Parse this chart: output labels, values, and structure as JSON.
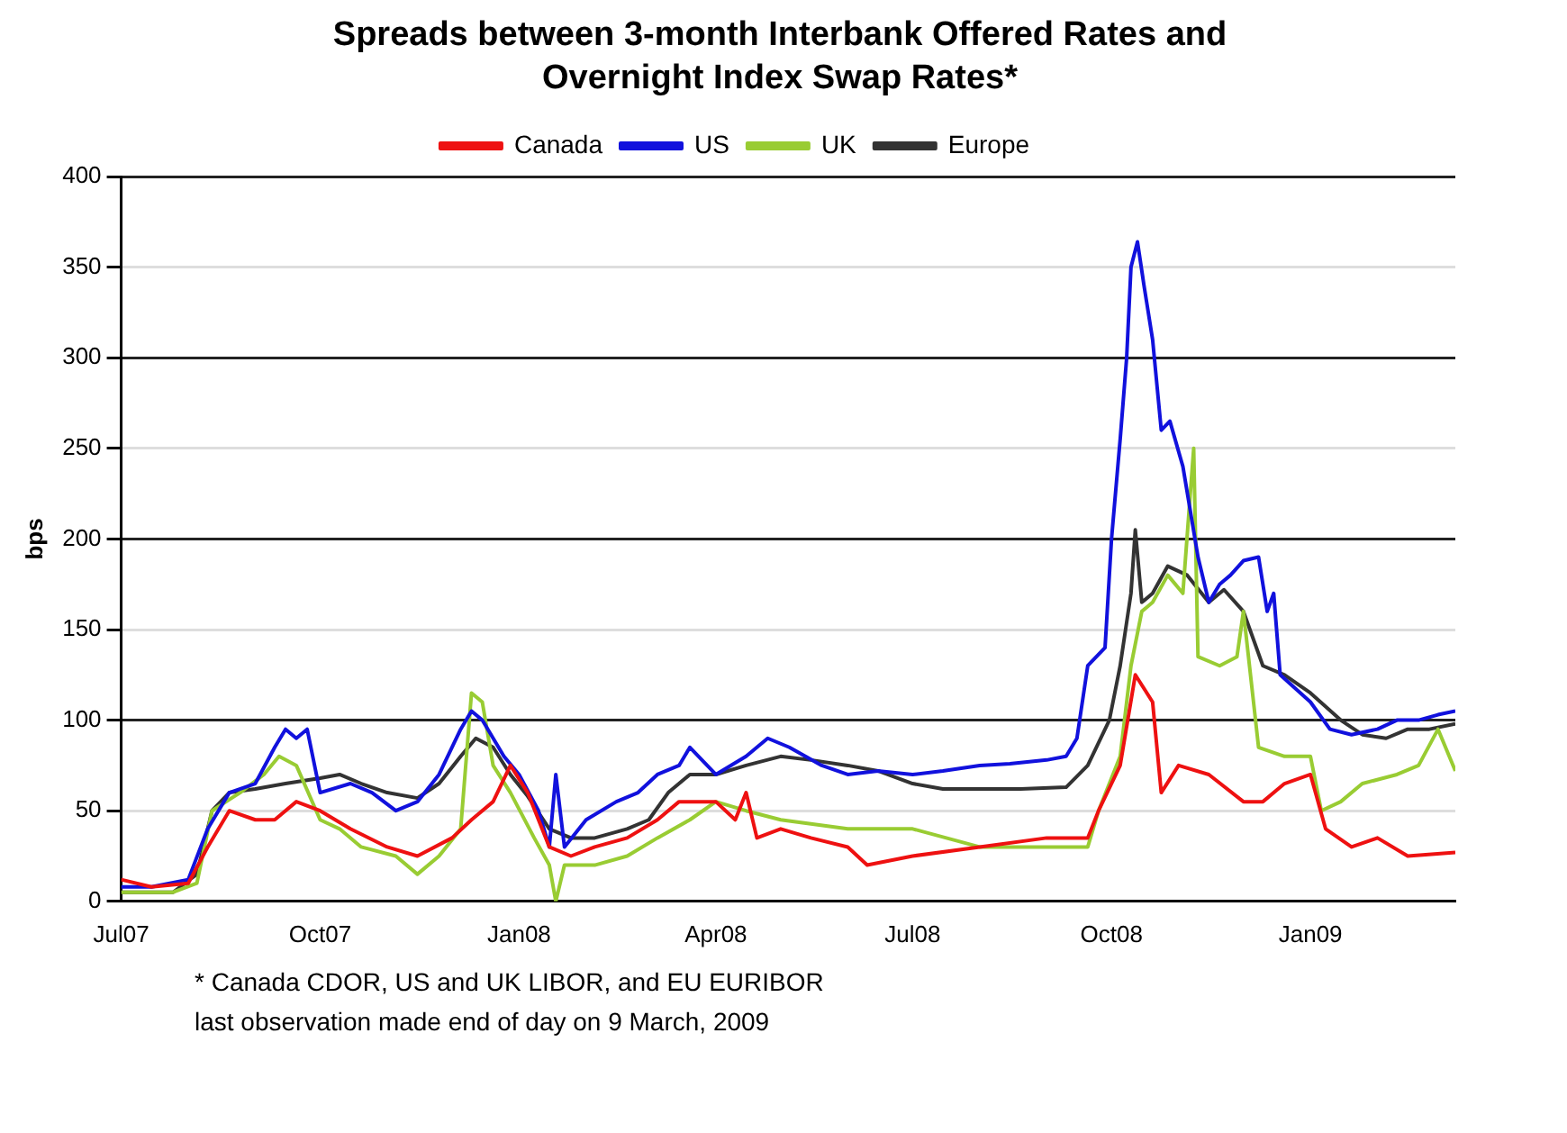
{
  "chart_data": {
    "type": "line",
    "title": "Spreads between 3-month Interbank Offered Rates and Overnight Index Swap Rates*",
    "ylabel": "bps",
    "xlim": [
      "2007-07-01",
      "2009-03-09"
    ],
    "xticks": [
      {
        "value": "2007-07-01",
        "label": "Jul07"
      },
      {
        "value": "2007-10-01",
        "label": "Oct07"
      },
      {
        "value": "2008-01-01",
        "label": "Jan08"
      },
      {
        "value": "2008-04-01",
        "label": "Apr08"
      },
      {
        "value": "2008-07-01",
        "label": "Jul08"
      },
      {
        "value": "2008-10-01",
        "label": "Oct08"
      },
      {
        "value": "2009-01-01",
        "label": "Jan09"
      }
    ],
    "ylim": [
      0,
      400
    ],
    "yticks": [
      0,
      50,
      100,
      150,
      200,
      250,
      300,
      350,
      400
    ],
    "grid": "y",
    "legend": "top",
    "marker": "none",
    "line_style": "solid",
    "series": [
      {
        "name": "Canada",
        "color": "#ee1111",
        "x": [
          "2007-07-01",
          "2007-07-15",
          "2007-08-01",
          "2007-08-10",
          "2007-08-20",
          "2007-09-01",
          "2007-09-10",
          "2007-09-20",
          "2007-10-01",
          "2007-10-15",
          "2007-11-01",
          "2007-11-15",
          "2007-12-01",
          "2007-12-10",
          "2007-12-20",
          "2007-12-28",
          "2008-01-05",
          "2008-01-15",
          "2008-01-25",
          "2008-02-05",
          "2008-02-20",
          "2008-03-05",
          "2008-03-15",
          "2008-04-01",
          "2008-04-10",
          "2008-04-15",
          "2008-04-20",
          "2008-05-01",
          "2008-05-15",
          "2008-06-01",
          "2008-06-10",
          "2008-07-01",
          "2008-08-01",
          "2008-09-01",
          "2008-09-20",
          "2008-09-25",
          "2008-10-05",
          "2008-10-12",
          "2008-10-20",
          "2008-10-24",
          "2008-11-01",
          "2008-11-15",
          "2008-12-01",
          "2008-12-10",
          "2008-12-20",
          "2009-01-01",
          "2009-01-08",
          "2009-01-20",
          "2009-02-01",
          "2009-02-15",
          "2009-03-09"
        ],
        "values": [
          12,
          8,
          10,
          30,
          50,
          45,
          45,
          55,
          50,
          40,
          30,
          25,
          35,
          45,
          55,
          75,
          60,
          30,
          25,
          30,
          35,
          45,
          55,
          55,
          45,
          60,
          35,
          40,
          35,
          30,
          20,
          25,
          30,
          35,
          35,
          50,
          75,
          125,
          110,
          60,
          75,
          70,
          55,
          55,
          65,
          70,
          40,
          30,
          35,
          25,
          27
        ]
      },
      {
        "name": "US",
        "color": "#1111dd",
        "x": [
          "2007-07-01",
          "2007-07-15",
          "2007-08-01",
          "2007-08-10",
          "2007-08-20",
          "2007-09-01",
          "2007-09-10",
          "2007-09-15",
          "2007-09-20",
          "2007-09-25",
          "2007-10-01",
          "2007-10-15",
          "2007-10-25",
          "2007-11-05",
          "2007-11-15",
          "2007-11-25",
          "2007-12-05",
          "2007-12-10",
          "2007-12-15",
          "2007-12-25",
          "2008-01-01",
          "2008-01-10",
          "2008-01-15",
          "2008-01-18",
          "2008-01-22",
          "2008-02-01",
          "2008-02-15",
          "2008-02-25",
          "2008-03-05",
          "2008-03-15",
          "2008-03-20",
          "2008-04-01",
          "2008-04-15",
          "2008-04-25",
          "2008-05-05",
          "2008-05-20",
          "2008-06-01",
          "2008-06-15",
          "2008-07-01",
          "2008-07-15",
          "2008-08-01",
          "2008-08-15",
          "2008-09-01",
          "2008-09-10",
          "2008-09-15",
          "2008-09-20",
          "2008-09-28",
          "2008-10-01",
          "2008-10-05",
          "2008-10-08",
          "2008-10-10",
          "2008-10-13",
          "2008-10-16",
          "2008-10-20",
          "2008-10-24",
          "2008-10-28",
          "2008-11-03",
          "2008-11-10",
          "2008-11-15",
          "2008-11-20",
          "2008-11-25",
          "2008-12-01",
          "2008-12-08",
          "2008-12-12",
          "2008-12-15",
          "2008-12-18",
          "2009-01-01",
          "2009-01-10",
          "2009-01-20",
          "2009-02-01",
          "2009-02-10",
          "2009-02-20",
          "2009-03-01",
          "2009-03-09"
        ],
        "values": [
          8,
          8,
          12,
          40,
          60,
          65,
          85,
          95,
          90,
          95,
          60,
          65,
          60,
          50,
          55,
          70,
          95,
          105,
          100,
          80,
          70,
          50,
          30,
          70,
          30,
          45,
          55,
          60,
          70,
          75,
          85,
          70,
          80,
          90,
          85,
          75,
          70,
          72,
          70,
          72,
          75,
          76,
          78,
          80,
          90,
          130,
          140,
          200,
          255,
          300,
          350,
          364,
          340,
          310,
          260,
          265,
          240,
          190,
          165,
          175,
          180,
          188,
          190,
          160,
          170,
          125,
          110,
          95,
          92,
          95,
          100,
          100,
          103,
          105
        ]
      },
      {
        "name": "UK",
        "color": "#99cc33",
        "x": [
          "2007-07-01",
          "2007-07-25",
          "2007-08-05",
          "2007-08-12",
          "2007-08-25",
          "2007-09-05",
          "2007-09-12",
          "2007-09-20",
          "2007-10-01",
          "2007-10-10",
          "2007-10-20",
          "2007-11-05",
          "2007-11-15",
          "2007-11-25",
          "2007-12-05",
          "2007-12-10",
          "2007-12-15",
          "2007-12-20",
          "2007-12-28",
          "2008-01-08",
          "2008-01-15",
          "2008-01-18",
          "2008-01-22",
          "2008-02-05",
          "2008-02-20",
          "2008-03-05",
          "2008-03-20",
          "2008-04-01",
          "2008-04-15",
          "2008-05-01",
          "2008-06-01",
          "2008-07-01",
          "2008-08-01",
          "2008-08-20",
          "2008-09-10",
          "2008-09-20",
          "2008-09-25",
          "2008-10-05",
          "2008-10-10",
          "2008-10-15",
          "2008-10-20",
          "2008-10-27",
          "2008-11-03",
          "2008-11-08",
          "2008-11-10",
          "2008-11-20",
          "2008-11-28",
          "2008-12-01",
          "2008-12-08",
          "2008-12-20",
          "2009-01-01",
          "2009-01-06",
          "2009-01-15",
          "2009-01-25",
          "2009-02-10",
          "2009-02-20",
          "2009-03-01",
          "2009-03-09"
        ],
        "values": [
          5,
          5,
          10,
          50,
          60,
          70,
          80,
          75,
          45,
          40,
          30,
          25,
          15,
          25,
          40,
          115,
          110,
          75,
          60,
          35,
          20,
          0,
          20,
          20,
          25,
          35,
          45,
          55,
          50,
          45,
          40,
          40,
          30,
          30,
          30,
          30,
          50,
          80,
          130,
          160,
          165,
          180,
          170,
          250,
          135,
          130,
          135,
          160,
          85,
          80,
          80,
          50,
          55,
          65,
          70,
          75,
          95,
          72
        ]
      },
      {
        "name": "Europe",
        "color": "#333333",
        "x": [
          "2007-07-01",
          "2007-07-25",
          "2007-08-05",
          "2007-08-12",
          "2007-08-20",
          "2007-09-01",
          "2007-09-15",
          "2007-10-01",
          "2007-10-10",
          "2007-10-20",
          "2007-11-01",
          "2007-11-15",
          "2007-11-25",
          "2007-12-05",
          "2007-12-12",
          "2007-12-20",
          "2007-12-28",
          "2008-01-05",
          "2008-01-15",
          "2008-01-25",
          "2008-02-05",
          "2008-02-20",
          "2008-03-01",
          "2008-03-10",
          "2008-03-20",
          "2008-04-01",
          "2008-04-15",
          "2008-05-01",
          "2008-05-15",
          "2008-06-01",
          "2008-06-15",
          "2008-07-01",
          "2008-07-15",
          "2008-08-01",
          "2008-08-20",
          "2008-09-10",
          "2008-09-20",
          "2008-09-30",
          "2008-10-05",
          "2008-10-10",
          "2008-10-12",
          "2008-10-15",
          "2008-10-20",
          "2008-10-27",
          "2008-11-05",
          "2008-11-15",
          "2008-11-22",
          "2008-12-01",
          "2008-12-10",
          "2008-12-20",
          "2009-01-01",
          "2009-01-15",
          "2009-01-25",
          "2009-02-05",
          "2009-02-15",
          "2009-02-25",
          "2009-03-09"
        ],
        "values": [
          5,
          5,
          15,
          50,
          60,
          62,
          65,
          68,
          70,
          65,
          60,
          57,
          65,
          80,
          90,
          85,
          70,
          58,
          40,
          35,
          35,
          40,
          45,
          60,
          70,
          70,
          75,
          80,
          78,
          75,
          72,
          65,
          62,
          62,
          62,
          63,
          75,
          100,
          130,
          170,
          205,
          165,
          170,
          185,
          180,
          165,
          172,
          160,
          130,
          125,
          115,
          100,
          92,
          90,
          95,
          95,
          98
        ]
      }
    ],
    "annotations": [
      "* Canada CDOR, US and UK LIBOR, and EU EURIBOR",
      "last observation made end of day on 9 March, 2009"
    ]
  }
}
